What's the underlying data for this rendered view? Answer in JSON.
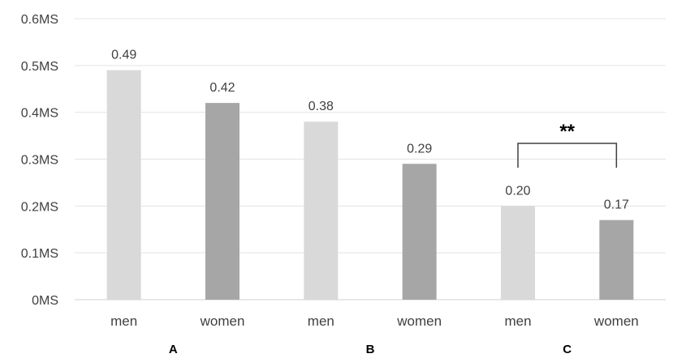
{
  "chart_data": {
    "type": "bar",
    "ylim": [
      0,
      0.6
    ],
    "y_ticks": [
      0,
      0.1,
      0.2,
      0.3,
      0.4,
      0.5,
      0.6
    ],
    "y_tick_labels": [
      "0MS",
      "0.1MS",
      "0.2MS",
      "0.3MS",
      "0.4MS",
      "0.5MS",
      "0.6MS"
    ],
    "grid": true,
    "legend": "none",
    "bars": [
      {
        "group": "A",
        "category": "men",
        "value": 0.49,
        "label": "0.49",
        "color": "#d9d9d9"
      },
      {
        "group": "A",
        "category": "women",
        "value": 0.42,
        "label": "0.42",
        "color": "#a6a6a6"
      },
      {
        "group": "B",
        "category": "men",
        "value": 0.38,
        "label": "0.38",
        "color": "#d9d9d9"
      },
      {
        "group": "B",
        "category": "women",
        "value": 0.29,
        "label": "0.29",
        "color": "#a6a6a6"
      },
      {
        "group": "C",
        "category": "men",
        "value": 0.2,
        "label": "0.20",
        "color": "#d9d9d9"
      },
      {
        "group": "C",
        "category": "women",
        "value": 0.17,
        "label": "0.17",
        "color": "#a6a6a6"
      }
    ],
    "groups": [
      "A",
      "B",
      "C"
    ],
    "annotations": [
      {
        "type": "significance-bracket",
        "group": "C",
        "text": "**"
      }
    ]
  }
}
